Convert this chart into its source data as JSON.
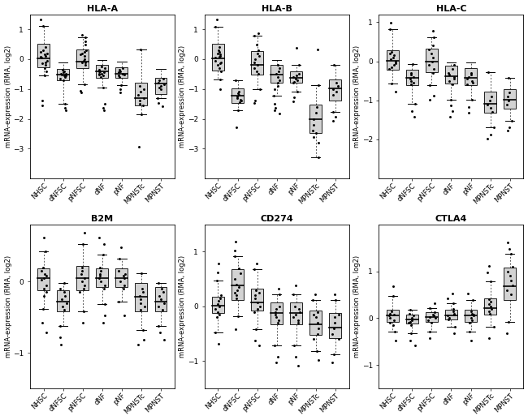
{
  "titles": [
    "HLA-A",
    "HLA-B",
    "HLA-C",
    "B2M",
    "CD274",
    "CTLA4"
  ],
  "categories": [
    "NHSC",
    "dNFSC",
    "pNFSC",
    "dNF",
    "pNF",
    "MPNSTc",
    "MPNST"
  ],
  "ylabel": "mRNA-expression (RMA, log2)",
  "box_data": {
    "HLA-A": {
      "NHSC": {
        "q1": -0.28,
        "median": 0.02,
        "q3": 0.52,
        "whislo": -0.55,
        "whishi": 1.1,
        "pts": [
          0.1,
          0.05,
          -0.1,
          0.2,
          -0.05,
          0.3,
          0.15,
          -0.2,
          -0.3,
          0.4,
          0.25,
          -0.15,
          0.08,
          -0.4,
          1.1,
          -0.55,
          -1.4,
          -1.55,
          1.32
        ]
      },
      "dNFSC": {
        "q1": -0.72,
        "median": -0.52,
        "q3": -0.32,
        "whislo": -1.5,
        "whishi": -0.1,
        "pts": [
          -0.45,
          -0.5,
          -0.55,
          -0.6,
          -0.65,
          -0.4,
          -0.35,
          -0.7,
          -0.55,
          -0.48,
          -0.52,
          -1.5,
          -1.62,
          -1.72
        ]
      },
      "pNFSC": {
        "q1": -0.3,
        "median": -0.08,
        "q3": 0.32,
        "whislo": -0.85,
        "whishi": 0.72,
        "pts": [
          -0.1,
          0.0,
          0.1,
          -0.2,
          0.2,
          0.3,
          -0.1,
          0.15,
          0.25,
          -0.05,
          0.5,
          0.6,
          -0.85,
          0.72,
          -1.05,
          -1.12,
          0.82
        ]
      },
      "dNF": {
        "q1": -0.62,
        "median": -0.42,
        "q3": -0.18,
        "whislo": -0.95,
        "whishi": -0.02,
        "pts": [
          -0.4,
          -0.45,
          -0.5,
          -0.55,
          -0.35,
          -0.3,
          -0.25,
          -0.6,
          -0.42,
          -0.48,
          -0.52,
          -0.95,
          -1.5,
          -1.62,
          -1.72
        ]
      },
      "pNF": {
        "q1": -0.62,
        "median": -0.48,
        "q3": -0.28,
        "whislo": -0.88,
        "whishi": -0.08,
        "pts": [
          -0.4,
          -0.45,
          -0.5,
          -0.55,
          -0.35,
          -0.3,
          -0.6,
          -0.48,
          -0.52,
          -0.88,
          -1.0,
          -1.12
        ]
      },
      "MPNSTc": {
        "q1": -1.55,
        "median": -1.3,
        "q3": -0.78,
        "whislo": -1.85,
        "whishi": 0.32,
        "pts": [
          -1.2,
          -1.3,
          -1.4,
          -1.5,
          -1.55,
          -0.9,
          -1.0,
          -1.1,
          -1.85,
          0.32,
          -2.95
        ]
      },
      "MPNST": {
        "q1": -1.18,
        "median": -0.82,
        "q3": -0.62,
        "whislo": -1.32,
        "whishi": -0.32,
        "pts": [
          -0.8,
          -0.85,
          -0.9,
          -0.95,
          -1.0,
          -0.7,
          -0.65,
          -1.32,
          -1.48,
          -1.58
        ]
      }
    },
    "HLA-B": {
      "NHSC": {
        "q1": -0.38,
        "median": 0.02,
        "q3": 0.52,
        "whislo": -0.68,
        "whishi": 1.08,
        "pts": [
          0.1,
          0.05,
          -0.1,
          0.2,
          -0.05,
          0.3,
          0.15,
          -0.2,
          -0.3,
          0.4,
          0.25,
          -0.15,
          0.08,
          -0.4,
          1.08,
          -0.68,
          -1.02,
          1.32
        ]
      },
      "dNFSC": {
        "q1": -1.48,
        "median": -1.22,
        "q3": -0.98,
        "whislo": -1.72,
        "whishi": -0.72,
        "pts": [
          -1.1,
          -1.15,
          -1.2,
          -1.25,
          -1.3,
          -1.35,
          -1.4,
          -1.45,
          -1.72,
          -0.72,
          -2.28
        ]
      },
      "pNFSC": {
        "q1": -0.52,
        "median": -0.18,
        "q3": 0.28,
        "whislo": -1.02,
        "whishi": 0.78,
        "pts": [
          -0.2,
          -0.1,
          0.0,
          0.1,
          0.2,
          -0.3,
          -0.4,
          -0.5,
          0.3,
          0.5,
          -1.02,
          0.78,
          -1.38,
          -1.48,
          0.88
        ]
      },
      "dNF": {
        "q1": -0.78,
        "median": -0.52,
        "q3": -0.18,
        "whislo": -1.22,
        "whishi": -0.02,
        "pts": [
          -0.4,
          -0.5,
          -0.6,
          -0.7,
          -0.8,
          -0.3,
          -0.2,
          -0.9,
          -1.0,
          -1.22,
          -1.5,
          -1.62,
          -1.72,
          -1.82
        ]
      },
      "pNF": {
        "q1": -0.78,
        "median": -0.62,
        "q3": -0.42,
        "whislo": -1.08,
        "whishi": -0.18,
        "pts": [
          -0.5,
          -0.55,
          -0.6,
          -0.65,
          -0.7,
          -0.75,
          -0.8,
          -1.08,
          -0.18,
          -1.28,
          -1.42,
          0.38
        ]
      },
      "MPNSTc": {
        "q1": -2.48,
        "median": -2.02,
        "q3": -1.52,
        "whislo": -3.28,
        "whishi": -0.88,
        "pts": [
          -1.8,
          -2.0,
          -2.2,
          -2.4,
          -2.48,
          -1.6,
          -2.6,
          -2.8,
          -3.28,
          -0.88,
          0.32
        ]
      },
      "MPNST": {
        "q1": -1.38,
        "median": -0.98,
        "q3": -0.68,
        "whislo": -1.78,
        "whishi": -0.18,
        "pts": [
          -0.8,
          -0.9,
          -1.0,
          -1.1,
          -1.2,
          -1.78,
          -0.18,
          -1.92,
          -2.08
        ]
      }
    },
    "HLA-C": {
      "NHSC": {
        "q1": -0.22,
        "median": 0.02,
        "q3": 0.28,
        "whislo": -0.58,
        "whishi": 0.82,
        "pts": [
          0.05,
          0.0,
          -0.05,
          0.1,
          0.15,
          -0.1,
          -0.15,
          0.2,
          0.25,
          -0.2,
          -0.58,
          0.82,
          0.98,
          -0.78
        ]
      },
      "dNFSC": {
        "q1": -0.62,
        "median": -0.42,
        "q3": -0.22,
        "whislo": -1.08,
        "whishi": -0.08,
        "pts": [
          -0.3,
          -0.35,
          -0.4,
          -0.45,
          -0.5,
          -0.55,
          -0.6,
          -1.08,
          -0.08,
          -1.28,
          -1.42
        ]
      },
      "pNFSC": {
        "q1": -0.28,
        "median": 0.0,
        "q3": 0.32,
        "whislo": -0.62,
        "whishi": 0.62,
        "pts": [
          -0.1,
          0.0,
          0.1,
          0.2,
          0.3,
          -0.2,
          -0.3,
          0.4,
          -0.62,
          0.62,
          -0.88,
          -0.98,
          0.78
        ]
      },
      "dNF": {
        "q1": -0.58,
        "median": -0.38,
        "q3": -0.12,
        "whislo": -0.98,
        "whishi": -0.02,
        "pts": [
          -0.3,
          -0.35,
          -0.4,
          -0.45,
          -0.5,
          -0.2,
          -0.1,
          -0.6,
          -0.98,
          -1.12,
          -1.28,
          -1.42
        ]
      },
      "pNF": {
        "q1": -0.62,
        "median": -0.42,
        "q3": -0.18,
        "whislo": -0.98,
        "whishi": -0.02,
        "pts": [
          -0.3,
          -0.35,
          -0.4,
          -0.45,
          -0.5,
          -0.55,
          -0.6,
          -0.98,
          -1.18,
          -1.32
        ]
      },
      "MPNSTc": {
        "q1": -1.32,
        "median": -1.08,
        "q3": -0.78,
        "whislo": -1.68,
        "whishi": -0.28,
        "pts": [
          -0.9,
          -1.0,
          -1.1,
          -1.2,
          -1.3,
          -1.68,
          -0.28,
          -1.88,
          -1.98
        ]
      },
      "MPNST": {
        "q1": -1.22,
        "median": -0.98,
        "q3": -0.72,
        "whislo": -1.52,
        "whishi": -0.42,
        "pts": [
          -0.8,
          -0.9,
          -1.0,
          -1.1,
          -1.52,
          -0.42,
          -1.68,
          -1.78
        ]
      }
    },
    "B2M": {
      "NHSC": {
        "q1": -0.12,
        "median": 0.05,
        "q3": 0.18,
        "whislo": -0.38,
        "whishi": 0.42,
        "pts": [
          0.02,
          0.05,
          0.08,
          0.1,
          -0.05,
          -0.1,
          -0.15,
          0.15,
          0.2,
          -0.2,
          -0.38,
          0.42,
          0.62,
          -0.58,
          -0.72
        ]
      },
      "dNFSC": {
        "q1": -0.42,
        "median": -0.28,
        "q3": -0.12,
        "whislo": -0.62,
        "whishi": -0.02,
        "pts": [
          -0.2,
          -0.25,
          -0.3,
          -0.35,
          -0.4,
          -0.15,
          -0.1,
          -0.62,
          -0.02,
          -0.78,
          -0.88
        ]
      },
      "pNFSC": {
        "q1": -0.12,
        "median": 0.05,
        "q3": 0.22,
        "whislo": -0.42,
        "whishi": 0.52,
        "pts": [
          0.0,
          0.05,
          0.1,
          0.15,
          -0.05,
          -0.1,
          -0.15,
          0.2,
          -0.42,
          0.52,
          -0.58,
          0.68
        ]
      },
      "dNF": {
        "q1": -0.08,
        "median": 0.05,
        "q3": 0.18,
        "whislo": -0.32,
        "whishi": 0.38,
        "pts": [
          0.0,
          0.05,
          0.08,
          0.1,
          0.15,
          -0.05,
          -0.1,
          0.2,
          -0.32,
          0.38,
          -0.48,
          -0.58,
          0.52,
          0.62
        ]
      },
      "pNF": {
        "q1": -0.08,
        "median": 0.05,
        "q3": 0.18,
        "whislo": -0.28,
        "whishi": 0.32,
        "pts": [
          0.0,
          0.05,
          0.08,
          0.1,
          -0.05,
          -0.1,
          0.15,
          -0.28,
          0.32,
          -0.48,
          0.48
        ]
      },
      "MPNSTc": {
        "q1": -0.42,
        "median": -0.22,
        "q3": -0.02,
        "whislo": -0.68,
        "whishi": 0.12,
        "pts": [
          -0.2,
          -0.25,
          -0.3,
          -0.35,
          -0.4,
          -0.15,
          -0.1,
          -0.68,
          0.12,
          -0.82,
          -0.88
        ]
      },
      "MPNST": {
        "q1": -0.42,
        "median": -0.28,
        "q3": -0.08,
        "whislo": -0.62,
        "whishi": -0.02,
        "pts": [
          -0.2,
          -0.25,
          -0.3,
          -0.35,
          -0.4,
          -0.15,
          -0.1,
          -0.62,
          -0.02,
          -0.72,
          -0.82
        ]
      }
    },
    "CD274": {
      "NHSC": {
        "q1": -0.12,
        "median": 0.02,
        "q3": 0.18,
        "whislo": -0.48,
        "whishi": 0.48,
        "pts": [
          0.0,
          0.05,
          -0.05,
          0.1,
          -0.1,
          0.15,
          -0.15,
          0.2,
          -0.2,
          -0.48,
          0.48,
          0.62,
          0.78,
          -0.68
        ]
      },
      "dNFSC": {
        "q1": 0.12,
        "median": 0.38,
        "q3": 0.68,
        "whislo": -0.18,
        "whishi": 0.92,
        "pts": [
          0.2,
          0.3,
          0.4,
          0.5,
          0.6,
          0.7,
          0.15,
          0.25,
          0.35,
          -0.18,
          0.92,
          1.02,
          1.18,
          -0.42
        ]
      },
      "pNFSC": {
        "q1": -0.08,
        "median": 0.08,
        "q3": 0.32,
        "whislo": -0.42,
        "whishi": 0.68,
        "pts": [
          0.0,
          0.08,
          0.15,
          0.2,
          0.25,
          -0.05,
          -0.1,
          0.3,
          -0.42,
          0.68,
          0.78,
          -0.62,
          -0.72
        ]
      },
      "dNF": {
        "q1": -0.32,
        "median": -0.12,
        "q3": 0.08,
        "whislo": -0.72,
        "whishi": 0.22,
        "pts": [
          -0.1,
          -0.15,
          -0.2,
          -0.25,
          -0.3,
          -0.05,
          0.0,
          -0.72,
          0.22,
          -0.92,
          -1.02,
          0.32
        ]
      },
      "pNF": {
        "q1": -0.32,
        "median": -0.12,
        "q3": 0.08,
        "whislo": -0.72,
        "whishi": 0.22,
        "pts": [
          -0.1,
          -0.15,
          -0.2,
          -0.25,
          -0.3,
          -0.05,
          0.0,
          -0.72,
          0.22,
          -0.92,
          -1.08,
          0.38
        ]
      },
      "MPNSTc": {
        "q1": -0.52,
        "median": -0.32,
        "q3": -0.08,
        "whislo": -0.82,
        "whishi": 0.12,
        "pts": [
          -0.2,
          -0.3,
          -0.4,
          -0.5,
          -0.6,
          -0.15,
          -0.1,
          -0.82,
          0.12,
          -0.98,
          0.22
        ]
      },
      "MPNST": {
        "q1": -0.58,
        "median": -0.38,
        "q3": -0.12,
        "whislo": -0.88,
        "whishi": 0.12,
        "pts": [
          -0.2,
          -0.3,
          -0.4,
          -0.5,
          -0.6,
          -0.15,
          -0.88,
          0.12,
          -1.02,
          0.22
        ]
      }
    },
    "CTLA4": {
      "NHSC": {
        "q1": -0.08,
        "median": 0.05,
        "q3": 0.18,
        "whislo": -0.28,
        "whishi": 0.48,
        "pts": [
          0.0,
          0.05,
          0.08,
          0.1,
          -0.05,
          -0.1,
          -0.15,
          0.15,
          -0.28,
          0.48,
          0.68,
          -0.48
        ]
      },
      "dNFSC": {
        "q1": -0.12,
        "median": -0.02,
        "q3": 0.08,
        "whislo": -0.32,
        "whishi": 0.18,
        "pts": [
          -0.05,
          -0.08,
          -0.1,
          0.0,
          0.05,
          -0.15,
          0.1,
          -0.32,
          0.18,
          -0.48,
          -0.58
        ]
      },
      "pNFSC": {
        "q1": -0.08,
        "median": 0.02,
        "q3": 0.12,
        "whislo": -0.28,
        "whishi": 0.22,
        "pts": [
          0.0,
          0.02,
          0.05,
          0.08,
          -0.05,
          -0.1,
          0.12,
          -0.28,
          0.22,
          -0.42,
          0.32
        ]
      },
      "dNF": {
        "q1": -0.02,
        "median": 0.05,
        "q3": 0.18,
        "whislo": -0.18,
        "whishi": 0.32,
        "pts": [
          0.0,
          0.05,
          0.08,
          0.1,
          0.15,
          -0.02,
          0.2,
          -0.18,
          0.32,
          0.42,
          0.52,
          -0.32
        ]
      },
      "pNF": {
        "q1": -0.08,
        "median": 0.05,
        "q3": 0.18,
        "whislo": -0.28,
        "whishi": 0.38,
        "pts": [
          0.0,
          0.05,
          0.08,
          0.1,
          -0.05,
          -0.1,
          0.15,
          -0.28,
          0.38,
          0.52,
          -0.48
        ]
      },
      "MPNSTc": {
        "q1": 0.08,
        "median": 0.22,
        "q3": 0.42,
        "whislo": -0.18,
        "whishi": 0.78,
        "pts": [
          0.1,
          0.15,
          0.2,
          0.25,
          0.3,
          0.35,
          0.4,
          -0.18,
          0.78,
          0.98,
          1.12,
          -0.42
        ]
      },
      "MPNST": {
        "q1": 0.38,
        "median": 0.68,
        "q3": 1.08,
        "whislo": -0.08,
        "whishi": 1.38,
        "pts": [
          0.5,
          0.6,
          0.7,
          0.8,
          0.9,
          1.0,
          1.1,
          -0.08,
          1.38,
          1.48,
          1.62,
          -0.32
        ]
      }
    }
  },
  "ylims": {
    "HLA-A": [
      -4.0,
      1.5
    ],
    "HLA-B": [
      -4.0,
      1.5
    ],
    "HLA-C": [
      -3.0,
      1.2
    ],
    "B2M": [
      -1.5,
      0.8
    ],
    "CD274": [
      -1.5,
      1.5
    ],
    "CTLA4": [
      -1.5,
      2.0
    ]
  },
  "yticks": {
    "HLA-A": [
      -3,
      -2,
      -1,
      0,
      1
    ],
    "HLA-B": [
      -3,
      -2,
      -1,
      0,
      1
    ],
    "HLA-C": [
      -2,
      -1,
      0,
      1
    ],
    "B2M": [
      -1,
      0
    ],
    "CD274": [
      -1,
      0,
      1
    ],
    "CTLA4": [
      -1,
      0,
      1
    ]
  },
  "box_color": "#d3d3d3",
  "median_color": "#000000",
  "whisker_color": "#555555",
  "flier_color": "#000000",
  "pt_color": "#000000",
  "background_color": "#ffffff"
}
